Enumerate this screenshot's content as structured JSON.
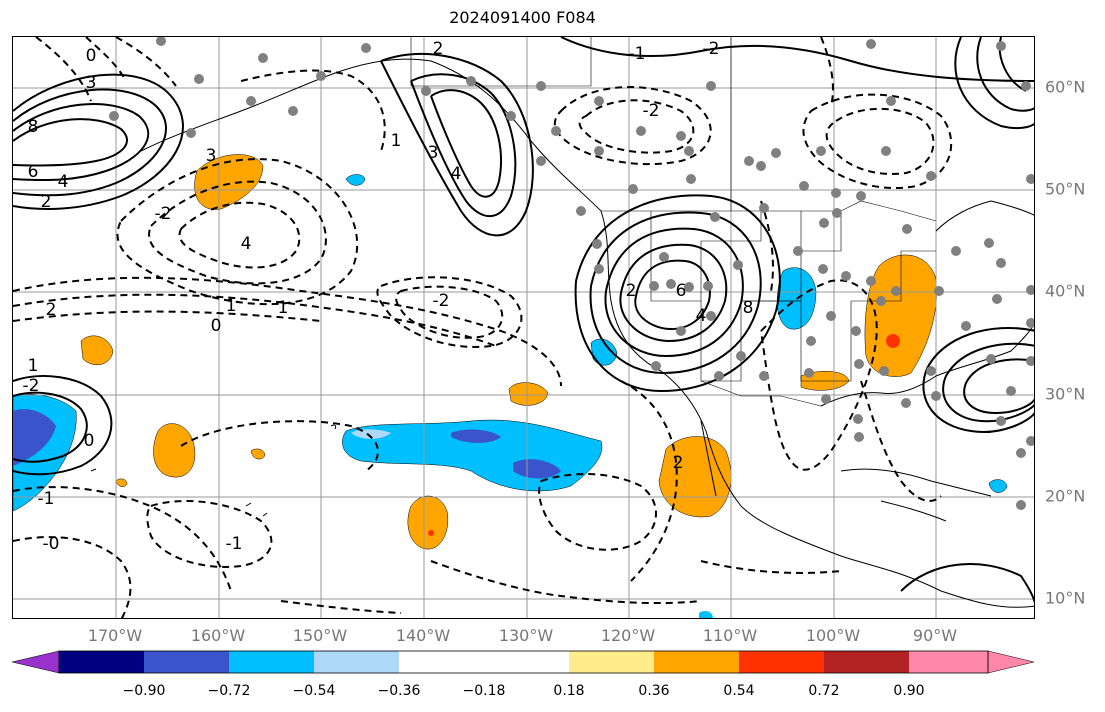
{
  "title": "2024091400 F084",
  "map": {
    "lon_labels": [
      "170°W",
      "160°W",
      "150°W",
      "140°W",
      "130°W",
      "120°W",
      "110°W",
      "100°W",
      "90°W"
    ],
    "lat_labels": [
      "60°N",
      "50°N",
      "40°N",
      "30°N",
      "20°N",
      "10°N"
    ],
    "contour_labels": [
      "0",
      "3",
      "8",
      "6",
      "4",
      "2",
      "-2",
      "1",
      "2",
      "3",
      "4",
      "-2",
      "1",
      "1",
      "3",
      "4",
      "6",
      "2",
      "4",
      "8",
      "-2",
      "2",
      "-2",
      "-1",
      "0",
      "-2",
      "1",
      "2",
      "0",
      "-1",
      "-0",
      "-1"
    ],
    "fill_colors": {
      "orange": "#ffa500",
      "red_orange": "#ff3300",
      "cyan": "#00bfff",
      "light_blue": "#add8f7",
      "medium_blue": "#3a55cc"
    }
  },
  "colorbar": {
    "colors": [
      "#9932cc",
      "#000080",
      "#3a55cc",
      "#00bfff",
      "#add8f7",
      "#ffffff",
      "#ffec8b",
      "#ffa500",
      "#ff3300",
      "#b22222",
      "#ff88aa"
    ],
    "ticks": [
      "−0.90",
      "−0.72",
      "−0.54",
      "−0.36",
      "−0.18",
      "0.18",
      "0.36",
      "0.54",
      "0.72",
      "0.90"
    ]
  }
}
